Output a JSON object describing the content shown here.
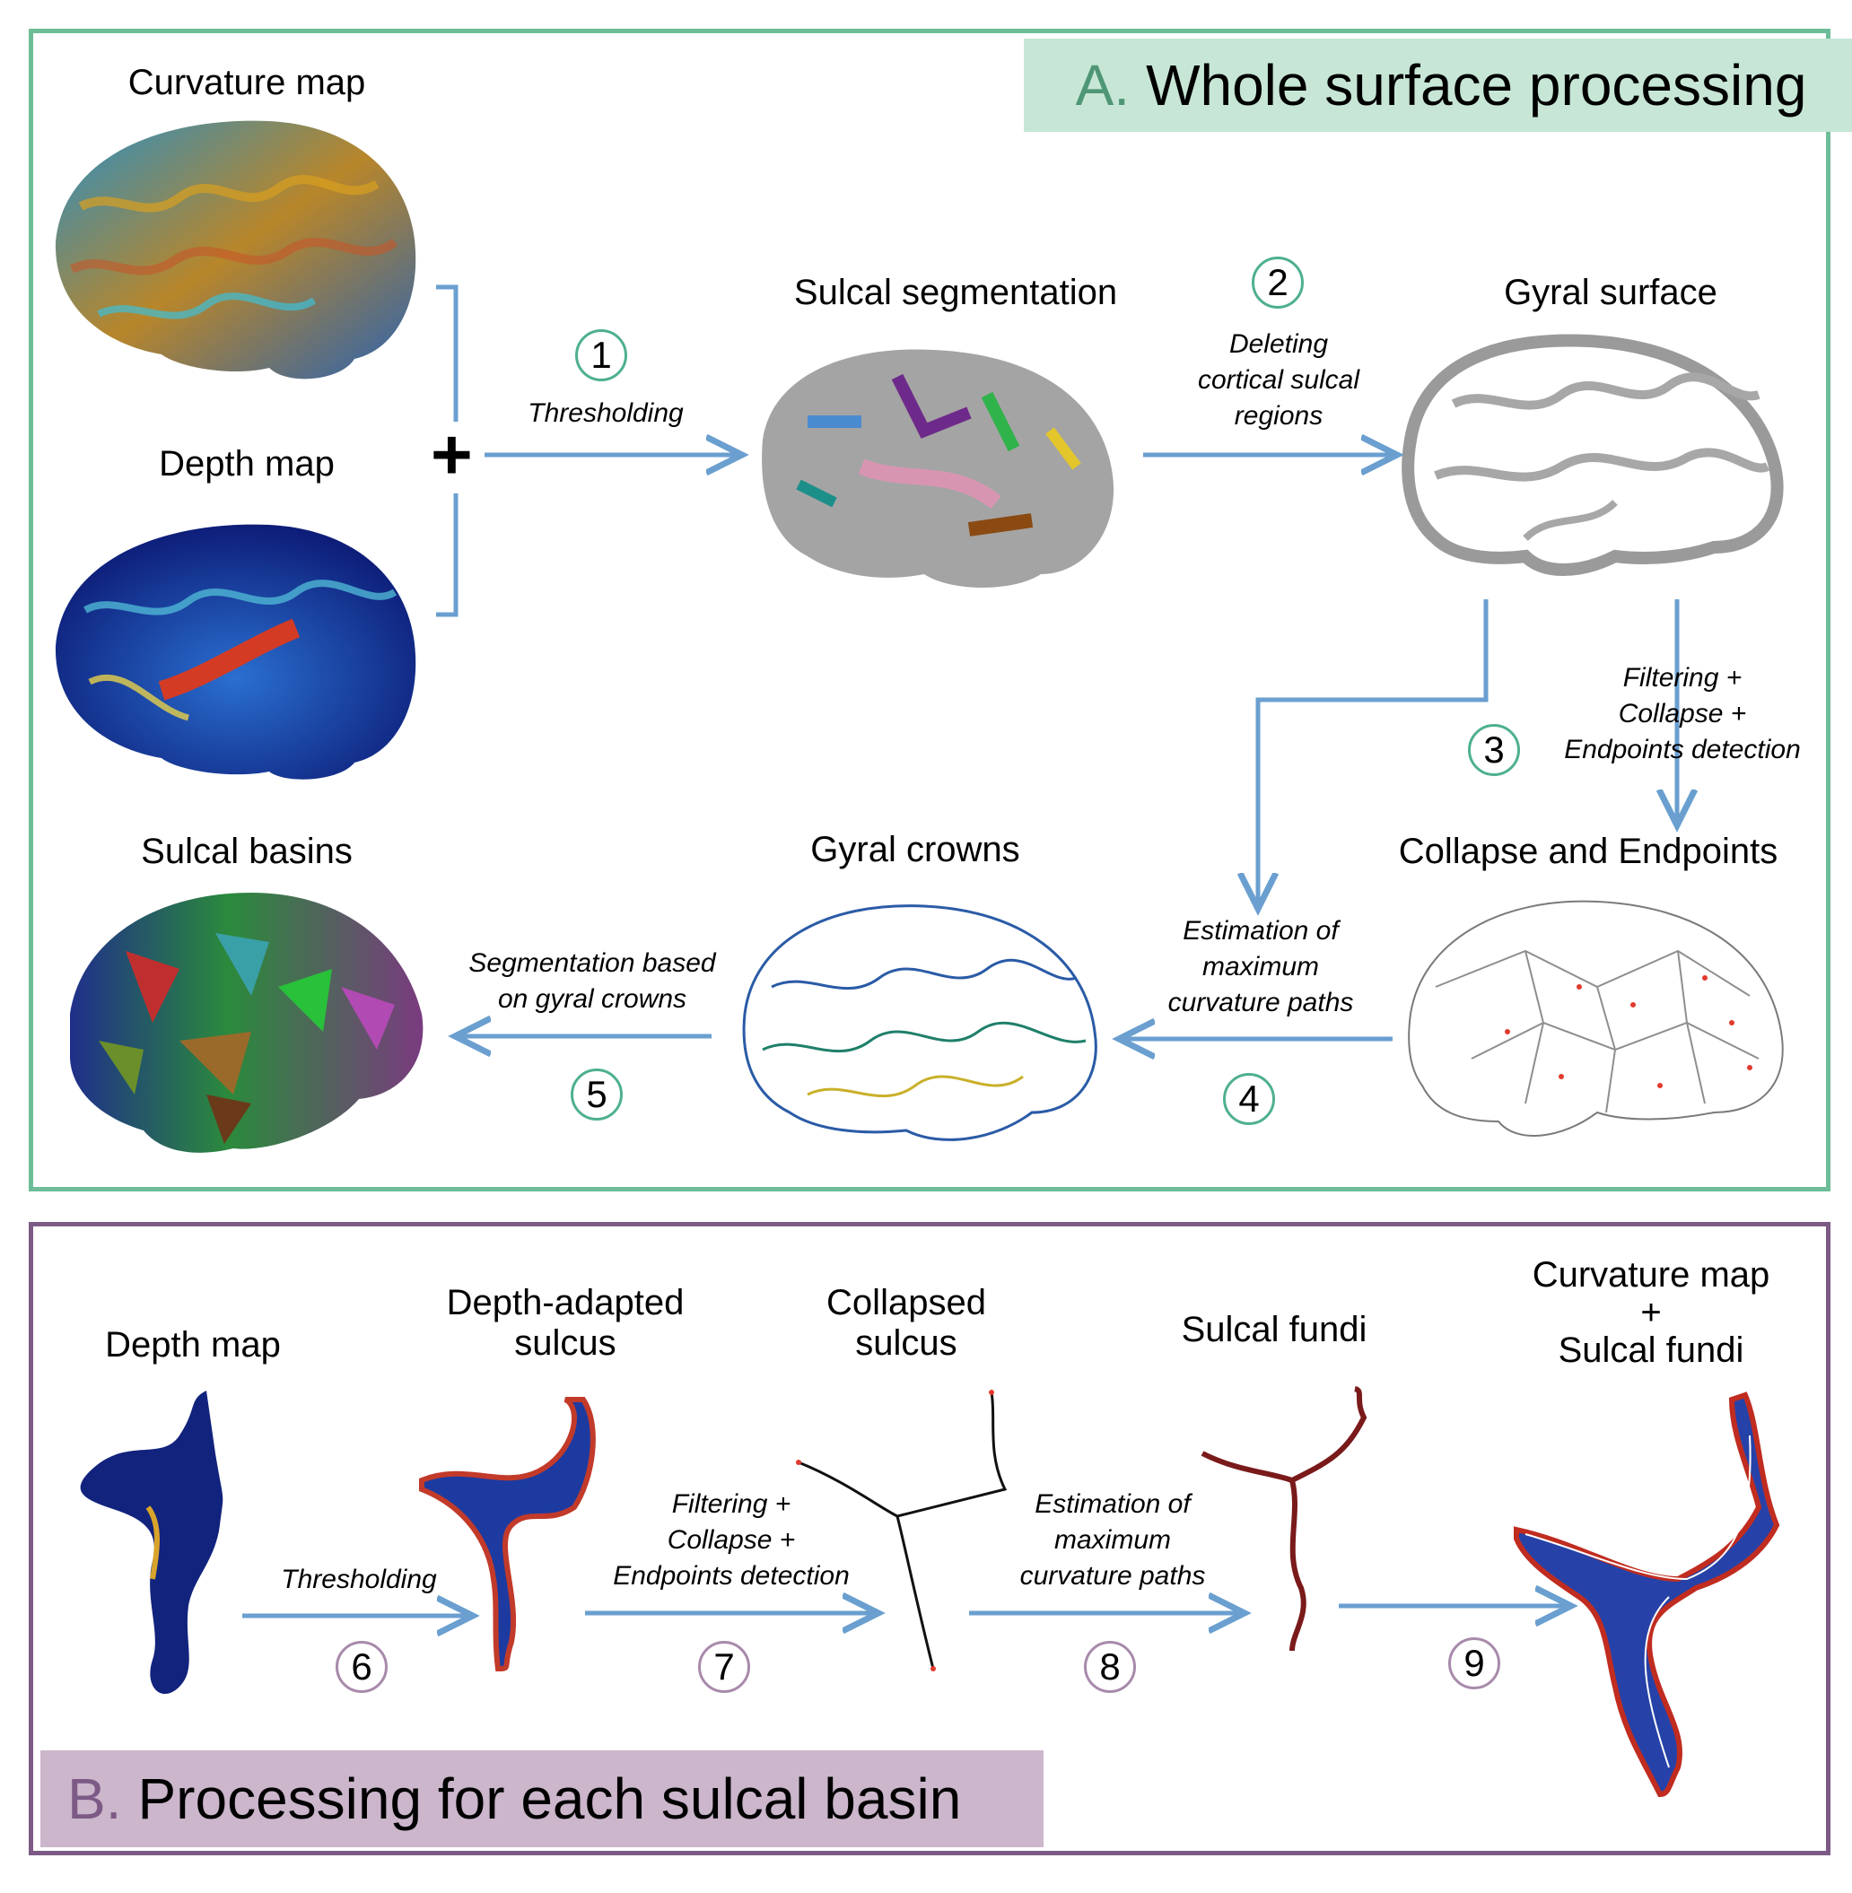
{
  "panel_a": {
    "header_letter": "A.",
    "header_title": "Whole surface processing",
    "labels": {
      "curvature_map": "Curvature map",
      "depth_map": "Depth map",
      "sulcal_segmentation": "Sulcal segmentation",
      "gyral_surface": "Gyral surface",
      "collapse_endpoints": "Collapse and Endpoints",
      "gyral_crowns": "Gyral crowns",
      "sulcal_basins": "Sulcal basins"
    },
    "steps": [
      {
        "num": "1",
        "text": [
          "Thresholding"
        ]
      },
      {
        "num": "2",
        "text": [
          "Deleting",
          "cortical sulcal",
          "regions"
        ]
      },
      {
        "num": "3",
        "text": [
          "Filtering +",
          "Collapse +",
          "Endpoints detection"
        ]
      },
      {
        "num": "4",
        "text": [
          "Estimation of",
          "maximum",
          "curvature paths"
        ]
      },
      {
        "num": "5",
        "text": [
          "Segmentation based",
          "on gyral crowns"
        ]
      }
    ],
    "plus": "+"
  },
  "panel_b": {
    "header_letter": "B.",
    "header_title": "Processing for each sulcal basin",
    "labels": {
      "depth_map": "Depth map",
      "depth_adapted": [
        "Depth-adapted",
        "sulcus"
      ],
      "collapsed": [
        "Collapsed",
        "sulcus"
      ],
      "sulcal_fundi": "Sulcal fundi",
      "curv_plus_fundi": [
        "Curvature map",
        "+",
        "Sulcal fundi"
      ]
    },
    "steps": [
      {
        "num": "6",
        "text": [
          "Thresholding"
        ]
      },
      {
        "num": "7",
        "text": [
          "Filtering +",
          "Collapse +",
          "Endpoints detection"
        ]
      },
      {
        "num": "8",
        "text": [
          "Estimation of",
          "maximum",
          "curvature paths"
        ]
      },
      {
        "num": "9",
        "text": []
      }
    ]
  },
  "colors": {
    "panel_a_border": "#6cbd98",
    "panel_a_header_bg": "#c7e6d6",
    "panel_b_border": "#7d5a86",
    "panel_b_header_bg": "#cbb6cb",
    "arrow": "#6a9fd0"
  }
}
